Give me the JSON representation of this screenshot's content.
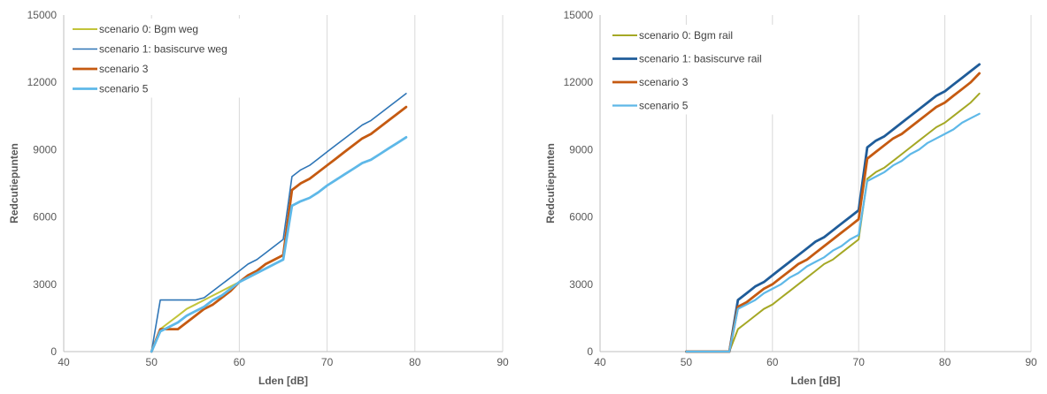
{
  "chart_data": [
    {
      "type": "line",
      "title": "",
      "xlabel": "Lden [dB]",
      "ylabel": "Redcutiepunten",
      "xlim": [
        40,
        90
      ],
      "ylim": [
        0,
        15000
      ],
      "xticks": [
        40,
        50,
        60,
        70,
        80,
        90
      ],
      "yticks": [
        0,
        3000,
        6000,
        9000,
        12000,
        15000
      ],
      "grid": true,
      "legend": "top-left",
      "series": [
        {
          "name": "scenario 0: Bgm weg",
          "color": "#c2c43a",
          "x": [
            50,
            51,
            52,
            53,
            54,
            55,
            56,
            57,
            58,
            59,
            60,
            61,
            62,
            63,
            64,
            65,
            66,
            67,
            68,
            69,
            70,
            71,
            72,
            73,
            74,
            75,
            76,
            77,
            78,
            79
          ],
          "y": [
            0,
            1000,
            1300,
            1600,
            1900,
            2100,
            2300,
            2500,
            2700,
            2900,
            3100,
            3300,
            3500,
            3700,
            3900,
            4100,
            7200,
            7500,
            7700,
            8000,
            8300,
            8600,
            8900,
            9200,
            9500,
            9700,
            10000,
            10300,
            10600,
            10900
          ]
        },
        {
          "name": "scenario 1: basiscurve weg",
          "color": "#2e75b6",
          "x": [
            50,
            51,
            52,
            53,
            54,
            55,
            56,
            57,
            58,
            59,
            60,
            61,
            62,
            63,
            64,
            65,
            66,
            67,
            68,
            69,
            70,
            71,
            72,
            73,
            74,
            75,
            76,
            77,
            78,
            79
          ],
          "y": [
            0,
            2300,
            2300,
            2300,
            2300,
            2300,
            2400,
            2700,
            3000,
            3300,
            3600,
            3900,
            4100,
            4400,
            4700,
            5000,
            7800,
            8100,
            8300,
            8600,
            8900,
            9200,
            9500,
            9800,
            10100,
            10300,
            10600,
            10900,
            11200,
            11500
          ]
        },
        {
          "name": "scenario 3",
          "color": "#c55a11",
          "x": [
            50,
            51,
            52,
            53,
            54,
            55,
            56,
            57,
            58,
            59,
            60,
            61,
            62,
            63,
            64,
            65,
            66,
            67,
            68,
            69,
            70,
            71,
            72,
            73,
            74,
            75,
            76,
            77,
            78,
            79
          ],
          "y": [
            0,
            1000,
            1000,
            1000,
            1300,
            1600,
            1900,
            2100,
            2400,
            2700,
            3100,
            3400,
            3600,
            3900,
            4100,
            4300,
            7200,
            7500,
            7700,
            8000,
            8300,
            8600,
            8900,
            9200,
            9500,
            9700,
            10000,
            10300,
            10600,
            10900
          ]
        },
        {
          "name": "scenario 5",
          "color": "#5eb8e8",
          "x": [
            50,
            51,
            52,
            53,
            54,
            55,
            56,
            57,
            58,
            59,
            60,
            61,
            62,
            63,
            64,
            65,
            66,
            67,
            68,
            69,
            70,
            71,
            72,
            73,
            74,
            75,
            76,
            77,
            78,
            79
          ],
          "y": [
            0,
            900,
            1100,
            1300,
            1600,
            1800,
            2000,
            2300,
            2500,
            2800,
            3100,
            3300,
            3500,
            3700,
            3900,
            4100,
            6500,
            6700,
            6850,
            7100,
            7400,
            7650,
            7900,
            8150,
            8400,
            8550,
            8800,
            9050,
            9300,
            9550
          ]
        }
      ]
    },
    {
      "type": "line",
      "title": "",
      "xlabel": "Lden [dB]",
      "ylabel": "Redcutiepunten",
      "xlim": [
        40,
        90
      ],
      "ylim": [
        0,
        15000
      ],
      "xticks": [
        40,
        50,
        60,
        70,
        80,
        90
      ],
      "yticks": [
        0,
        3000,
        6000,
        9000,
        12000,
        15000
      ],
      "grid": true,
      "legend": "top-left",
      "series": [
        {
          "name": "scenario 0: Bgm rail",
          "color": "#a5a825",
          "x": [
            50,
            55,
            56,
            57,
            58,
            59,
            60,
            61,
            62,
            63,
            64,
            65,
            66,
            67,
            68,
            69,
            70,
            71,
            72,
            73,
            74,
            75,
            76,
            77,
            78,
            79,
            80,
            81,
            82,
            83,
            84
          ],
          "y": [
            0,
            0,
            1000,
            1300,
            1600,
            1900,
            2100,
            2400,
            2700,
            3000,
            3300,
            3600,
            3900,
            4100,
            4400,
            4700,
            5000,
            7700,
            8000,
            8200,
            8500,
            8800,
            9100,
            9400,
            9700,
            10000,
            10200,
            10500,
            10800,
            11100,
            11500
          ]
        },
        {
          "name": "scenario 1: basiscurve rail",
          "color": "#1f5c99",
          "x": [
            50,
            55,
            56,
            57,
            58,
            59,
            60,
            61,
            62,
            63,
            64,
            65,
            66,
            67,
            68,
            69,
            70,
            71,
            72,
            73,
            74,
            75,
            76,
            77,
            78,
            79,
            80,
            81,
            82,
            83,
            84
          ],
          "y": [
            0,
            0,
            2300,
            2600,
            2900,
            3100,
            3400,
            3700,
            4000,
            4300,
            4600,
            4900,
            5100,
            5400,
            5700,
            6000,
            6300,
            9100,
            9400,
            9600,
            9900,
            10200,
            10500,
            10800,
            11100,
            11400,
            11600,
            11900,
            12200,
            12500,
            12800
          ]
        },
        {
          "name": "scenario 3",
          "color": "#c55a11",
          "x": [
            50,
            55,
            56,
            57,
            58,
            59,
            60,
            61,
            62,
            63,
            64,
            65,
            66,
            67,
            68,
            69,
            70,
            71,
            72,
            73,
            74,
            75,
            76,
            77,
            78,
            79,
            80,
            81,
            82,
            83,
            84
          ],
          "y": [
            0,
            0,
            2000,
            2200,
            2500,
            2800,
            3000,
            3300,
            3600,
            3900,
            4100,
            4400,
            4700,
            5000,
            5300,
            5600,
            5900,
            8600,
            8900,
            9200,
            9500,
            9700,
            10000,
            10300,
            10600,
            10900,
            11100,
            11400,
            11700,
            12000,
            12400
          ]
        },
        {
          "name": "scenario 5",
          "color": "#5eb8e8",
          "x": [
            50,
            55,
            56,
            57,
            58,
            59,
            60,
            61,
            62,
            63,
            64,
            65,
            66,
            67,
            68,
            69,
            70,
            71,
            72,
            73,
            74,
            75,
            76,
            77,
            78,
            79,
            80,
            81,
            82,
            83,
            84
          ],
          "y": [
            0,
            0,
            1900,
            2100,
            2300,
            2600,
            2800,
            3000,
            3300,
            3500,
            3800,
            4000,
            4200,
            4500,
            4700,
            5000,
            5200,
            7600,
            7800,
            8000,
            8300,
            8500,
            8800,
            9000,
            9300,
            9500,
            9700,
            9900,
            10200,
            10400,
            10600
          ]
        }
      ]
    }
  ]
}
